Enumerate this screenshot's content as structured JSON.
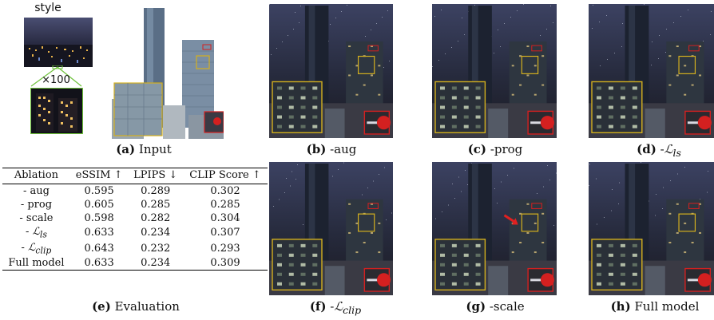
{
  "input_panel": {
    "style_label": "style",
    "zoom_label": "×100",
    "caption_letter": "(a)",
    "caption_text": "Input"
  },
  "panels": [
    {
      "id": "b",
      "letter": "(b)",
      "text": "-aug"
    },
    {
      "id": "c",
      "letter": "(c)",
      "text": "-prog"
    },
    {
      "id": "d",
      "letter": "(d)",
      "text": "-",
      "math": "ℒ",
      "sub": "ls"
    },
    {
      "id": "f",
      "letter": "(f)",
      "text": "-",
      "math": "ℒ",
      "sub": "clip"
    },
    {
      "id": "g",
      "letter": "(g)",
      "text": "-scale"
    },
    {
      "id": "h",
      "letter": "(h)",
      "text": "Full model"
    }
  ],
  "table": {
    "headers": [
      "Ablation",
      "eSSIM ↑",
      "LPIPS ↓",
      "CLIP Score ↑"
    ],
    "rows": [
      [
        "- aug",
        "0.595",
        "0.289",
        "0.302"
      ],
      [
        "- prog",
        "0.605",
        "0.285",
        "0.285"
      ],
      [
        "- scale",
        "0.598",
        "0.282",
        "0.304"
      ],
      [
        "- ℒ",
        "0.633",
        "0.234",
        "0.307"
      ],
      [
        "- ℒ",
        "0.643",
        "0.232",
        "0.293"
      ],
      [
        "Full model",
        "0.633",
        "0.234",
        "0.309"
      ]
    ],
    "row_subscripts": [
      "",
      "",
      "",
      "ls",
      "clip",
      ""
    ],
    "caption_letter": "(e)",
    "caption_text": "Evaluation"
  },
  "colors": {
    "highlight_box": "#d4b01e",
    "inset_box": "#d42020",
    "arrow": "#e02020"
  }
}
